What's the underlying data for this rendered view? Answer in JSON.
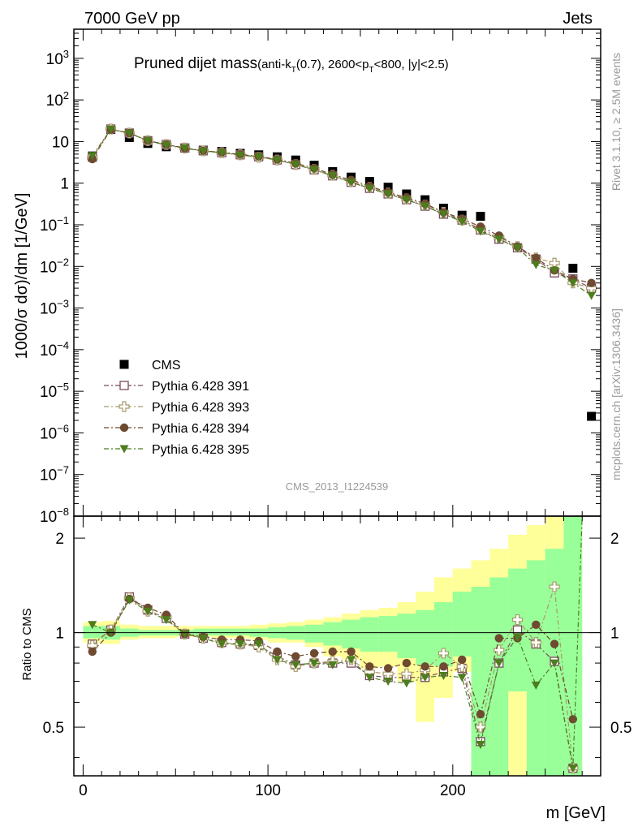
{
  "header": {
    "energy": "7000 GeV pp",
    "process": "Jets",
    "title_main": "Pruned dijet mass",
    "title_detail": "(anti-k",
    "title_sub_t": "T",
    "title_detail2": "(0.7), 2600<p",
    "title_sub_t2": "T",
    "title_detail3": "<800, |y|<2.5)",
    "ylabel_top": "1000/σ dσ)/dm [1/GeV]",
    "ylabel_bottom": "Ratio to CMS",
    "xlabel": "m [GeV]",
    "side_rivet": "Rivet 3.1.10, ≥ 2.5M events",
    "side_mcplots": "mcplots.cern.ch [arXiv:1306.3436]",
    "analysis_id": "CMS_2013_I1224539"
  },
  "colors": {
    "cms": "#000000",
    "p391": "#7a4a5e",
    "p393": "#a89a6a",
    "p394": "#6e4a30",
    "p395": "#4e7d1e",
    "band_outer": "#ffff99",
    "band_inner": "#99ff99"
  },
  "chart_data": [
    {
      "type": "scatter",
      "panel": "main",
      "xlim": [
        -5,
        280
      ],
      "ylim": [
        1e-08,
        5000
      ],
      "yscale": "log",
      "y_ticks": [
        "10^3",
        "10^2",
        "10",
        "1",
        "10^-1",
        "10^-2",
        "10^-3",
        "10^-4",
        "10^-5",
        "10^-6",
        "10^-7",
        "10^-8"
      ],
      "x": [
        5,
        15,
        25,
        35,
        45,
        55,
        65,
        75,
        85,
        95,
        105,
        115,
        125,
        135,
        145,
        155,
        165,
        175,
        185,
        195,
        205,
        215,
        225,
        235,
        245,
        255,
        265,
        275
      ],
      "legend_position": "lower-left",
      "series": [
        {
          "name": "CMS",
          "marker": "square-filled",
          "values": [
            4.5,
            19.5,
            12.5,
            9.0,
            7.5,
            7.0,
            6.2,
            5.8,
            5.2,
            4.8,
            4.3,
            3.6,
            2.7,
            1.9,
            1.4,
            1.1,
            0.8,
            0.55,
            0.4,
            0.25,
            0.17,
            0.16,
            null,
            null,
            null,
            null,
            0.009,
            2.5e-06
          ]
        },
        {
          "name": "Pythia 6.428 391",
          "marker": "square-open",
          "values": [
            4.2,
            20,
            16,
            10.5,
            8.5,
            7.0,
            6.0,
            5.4,
            4.8,
            4.3,
            3.6,
            2.8,
            2.1,
            1.5,
            1.05,
            0.75,
            0.55,
            0.4,
            0.28,
            0.18,
            0.13,
            0.075,
            0.045,
            0.028,
            0.015,
            0.007,
            0.005,
            0.003
          ]
        },
        {
          "name": "Pythia 6.428 393",
          "marker": "cross-open",
          "values": [
            4.1,
            20,
            16,
            10.5,
            8.5,
            7.0,
            6.0,
            5.4,
            4.8,
            4.2,
            3.6,
            2.8,
            2.15,
            1.55,
            1.1,
            0.8,
            0.58,
            0.42,
            0.3,
            0.2,
            0.13,
            0.08,
            0.05,
            0.03,
            0.016,
            0.012,
            0.004,
            0.003
          ]
        },
        {
          "name": "Pythia 6.428 394",
          "marker": "circle-filled",
          "values": [
            3.8,
            19.5,
            16,
            10.5,
            8.5,
            6.9,
            6.0,
            5.5,
            4.9,
            4.4,
            3.7,
            3.0,
            2.3,
            1.6,
            1.2,
            0.85,
            0.6,
            0.45,
            0.32,
            0.2,
            0.14,
            0.09,
            0.055,
            0.03,
            0.016,
            0.008,
            0.005,
            0.004
          ]
        },
        {
          "name": "Pythia 6.428 395",
          "marker": "triangle-down-filled",
          "values": [
            4.6,
            19.5,
            16,
            10.4,
            8.2,
            6.9,
            5.9,
            5.4,
            4.7,
            4.3,
            3.6,
            2.8,
            2.1,
            1.5,
            1.05,
            0.75,
            0.55,
            0.4,
            0.28,
            0.18,
            0.12,
            0.07,
            0.045,
            0.028,
            0.011,
            0.008,
            0.004,
            0.002
          ]
        }
      ]
    },
    {
      "type": "scatter",
      "panel": "ratio",
      "xlim": [
        -5,
        280
      ],
      "ylim": [
        0.35,
        2.35
      ],
      "yscale": "log",
      "y_ticks": [
        "0.5",
        "1",
        "2"
      ],
      "x_ticks": [
        "0",
        "100",
        "200"
      ],
      "reference_line": 1,
      "x": [
        5,
        15,
        25,
        35,
        45,
        55,
        65,
        75,
        85,
        95,
        105,
        115,
        125,
        135,
        145,
        155,
        165,
        175,
        185,
        195,
        205,
        215,
        225,
        235,
        245,
        255,
        265
      ],
      "bands": {
        "outer": [
          [
            0.93,
            1.08
          ],
          [
            0.92,
            1.09
          ],
          [
            0.95,
            1.06
          ],
          [
            0.96,
            1.05
          ],
          [
            0.96,
            1.05
          ],
          [
            0.97,
            1.05
          ],
          [
            0.97,
            1.05
          ],
          [
            0.96,
            1.05
          ],
          [
            0.96,
            1.05
          ],
          [
            0.95,
            1.06
          ],
          [
            0.93,
            1.07
          ],
          [
            0.93,
            1.08
          ],
          [
            0.9,
            1.1
          ],
          [
            0.84,
            1.12
          ],
          [
            0.82,
            1.15
          ],
          [
            0.77,
            1.18
          ],
          [
            0.78,
            1.2
          ],
          [
            0.7,
            1.25
          ],
          [
            0.52,
            1.35
          ],
          [
            0.62,
            1.5
          ],
          [
            0.75,
            1.6
          ],
          [
            0.35,
            1.7
          ],
          [
            0.35,
            1.85
          ],
          [
            0.35,
            2.05
          ],
          [
            0.35,
            2.2
          ],
          [
            0.35,
            2.4
          ],
          [
            0.35,
            2.4
          ]
        ],
        "inner": [
          [
            0.96,
            1.05
          ],
          [
            0.95,
            1.05
          ],
          [
            0.97,
            1.03
          ],
          [
            0.98,
            1.02
          ],
          [
            0.98,
            1.02
          ],
          [
            0.98,
            1.02
          ],
          [
            0.98,
            1.03
          ],
          [
            0.98,
            1.03
          ],
          [
            0.98,
            1.03
          ],
          [
            0.97,
            1.03
          ],
          [
            0.96,
            1.04
          ],
          [
            0.95,
            1.05
          ],
          [
            0.93,
            1.06
          ],
          [
            0.91,
            1.08
          ],
          [
            0.89,
            1.1
          ],
          [
            0.87,
            1.12
          ],
          [
            0.87,
            1.13
          ],
          [
            0.83,
            1.15
          ],
          [
            0.79,
            1.18
          ],
          [
            0.78,
            1.25
          ],
          [
            0.84,
            1.35
          ],
          [
            0.35,
            1.4
          ],
          [
            0.35,
            1.5
          ],
          [
            0.65,
            1.6
          ],
          [
            0.35,
            1.7
          ],
          [
            0.35,
            1.85
          ],
          [
            0.35,
            2.4
          ]
        ]
      },
      "series": [
        {
          "name": "Pythia 6.428 391",
          "values": [
            0.92,
            1.02,
            1.3,
            1.18,
            1.11,
            0.99,
            0.96,
            0.93,
            0.92,
            0.91,
            0.84,
            0.79,
            0.8,
            0.8,
            0.8,
            0.73,
            0.72,
            0.72,
            0.72,
            0.75,
            0.77,
            0.45,
            0.8,
            1.02,
            0.92,
            0.81,
            0.37
          ]
        },
        {
          "name": "Pythia 6.428 393",
          "values": [
            0.91,
            1.02,
            1.29,
            1.17,
            1.12,
            0.99,
            0.96,
            0.93,
            0.92,
            0.9,
            0.82,
            0.78,
            0.8,
            0.81,
            0.82,
            0.75,
            0.74,
            0.74,
            0.76,
            0.86,
            0.78,
            0.5,
            0.88,
            1.1,
            0.93,
            1.4,
            0.37
          ]
        },
        {
          "name": "Pythia 6.428 394",
          "values": [
            0.87,
            1.0,
            1.28,
            1.2,
            1.14,
            0.99,
            0.97,
            0.95,
            0.95,
            0.94,
            0.87,
            0.84,
            0.86,
            0.87,
            0.87,
            0.78,
            0.77,
            0.8,
            0.78,
            0.78,
            0.82,
            0.55,
            0.96,
            0.96,
            1.06,
            0.92,
            0.53
          ]
        },
        {
          "name": "Pythia 6.428 395",
          "values": [
            1.06,
            1.0,
            1.27,
            1.17,
            1.1,
            0.99,
            0.96,
            0.92,
            0.92,
            0.92,
            0.82,
            0.79,
            0.8,
            0.79,
            0.82,
            0.72,
            0.7,
            0.69,
            0.72,
            0.73,
            0.72,
            0.44,
            0.8,
            0.97,
            0.68,
            0.8,
            0.37
          ]
        }
      ]
    }
  ]
}
